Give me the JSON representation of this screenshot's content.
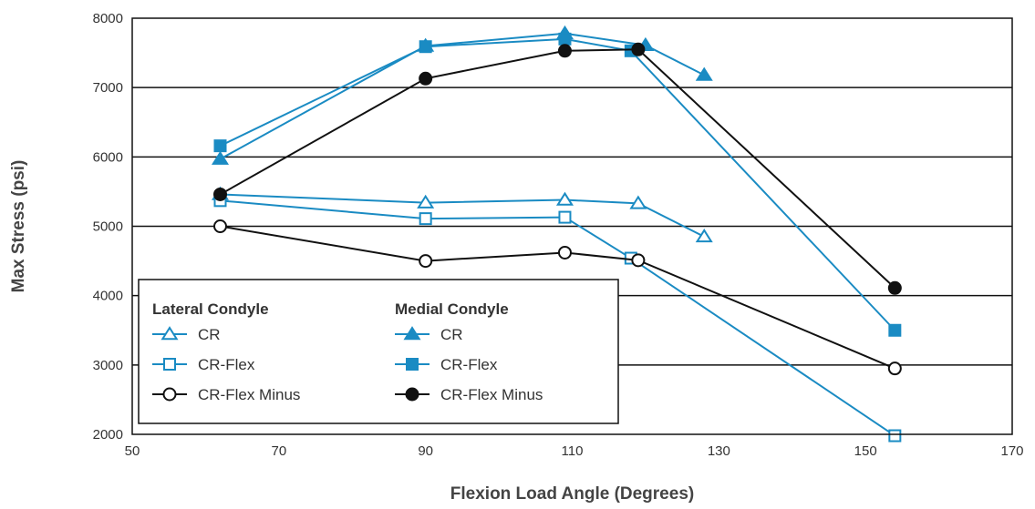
{
  "chart_data": {
    "type": "line",
    "title": "",
    "xlabel": "Flexion Load Angle (Degrees)",
    "ylabel": "Max Stress (psi)",
    "xlim": [
      50,
      170
    ],
    "ylim": [
      2000,
      8000
    ],
    "x_ticks": [
      50,
      70,
      90,
      110,
      130,
      150,
      170
    ],
    "y_ticks": [
      2000,
      3000,
      4000,
      5000,
      6000,
      7000,
      8000
    ],
    "grid": "horizontal",
    "legend_position": "bottom-left",
    "colors": {
      "blue": "#1a8bc3",
      "black": "#111111"
    },
    "legend": {
      "lateral_header": "Lateral Condyle",
      "medial_header": "Medial Condyle"
    },
    "series": [
      {
        "name": "CR",
        "group": "Lateral Condyle",
        "color": "#1a8bc3",
        "marker": "triangle",
        "filled": false,
        "x": [
          62,
          90,
          109,
          119,
          128
        ],
        "y": [
          5460,
          5340,
          5380,
          5330,
          4850
        ]
      },
      {
        "name": "CR-Flex",
        "group": "Lateral Condyle",
        "color": "#1a8bc3",
        "marker": "square",
        "filled": false,
        "x": [
          62,
          90,
          109,
          118,
          154
        ],
        "y": [
          5370,
          5110,
          5130,
          4540,
          1980
        ]
      },
      {
        "name": "CR-Flex Minus",
        "group": "Lateral Condyle",
        "color": "#111111",
        "marker": "circle",
        "filled": false,
        "x": [
          62,
          90,
          109,
          119,
          154
        ],
        "y": [
          5000,
          4500,
          4620,
          4510,
          2950
        ]
      },
      {
        "name": "CR",
        "group": "Medial Condyle",
        "color": "#1a8bc3",
        "marker": "triangle",
        "filled": true,
        "x": [
          62,
          90,
          109,
          120,
          128
        ],
        "y": [
          5970,
          7600,
          7780,
          7610,
          7180
        ]
      },
      {
        "name": "CR-Flex",
        "group": "Medial Condyle",
        "color": "#1a8bc3",
        "marker": "square",
        "filled": true,
        "x": [
          62,
          90,
          109,
          118,
          154
        ],
        "y": [
          6160,
          7590,
          7700,
          7530,
          3500
        ]
      },
      {
        "name": "CR-Flex Minus",
        "group": "Medial Condyle",
        "color": "#111111",
        "marker": "circle",
        "filled": true,
        "x": [
          62,
          90,
          109,
          119,
          154
        ],
        "y": [
          5460,
          7130,
          7530,
          7550,
          4110
        ]
      }
    ]
  }
}
